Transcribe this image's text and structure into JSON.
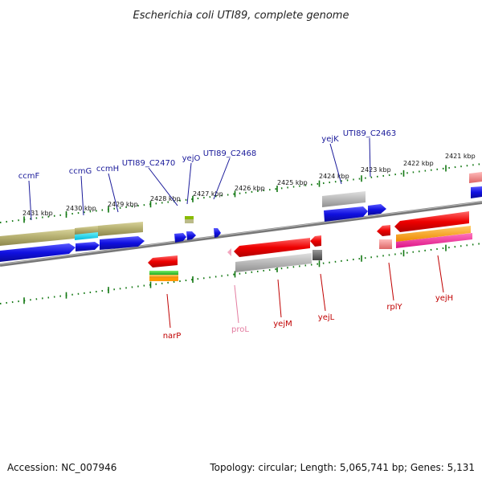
{
  "title": "Escherichia coli UTI89, complete genome",
  "footer": {
    "accession": "Accession: NC_007946",
    "summary": "Topology: circular; Length: 5,065,741 bp; Genes: 5,131"
  },
  "colors": {
    "forward_cds": "#1010e0",
    "reverse_cds": "#e00000",
    "tick": "#117711",
    "backbone": "#888888",
    "label_top": "#1a1a9a",
    "label_bottom": "#c00000",
    "pseudo_label": "#e37ca0"
  },
  "kbp_labels": [
    {
      "text": "2431 kbp"
    },
    {
      "text": "2430 kbp"
    },
    {
      "text": "2429 kbp"
    },
    {
      "text": "2428 kbp"
    },
    {
      "text": "2427 kbp"
    },
    {
      "text": "2426 kbp"
    },
    {
      "text": "2425 kbp"
    },
    {
      "text": "2424 kbp"
    },
    {
      "text": "2423 kbp"
    },
    {
      "text": "2422 kbp"
    },
    {
      "text": "2421 kbp"
    }
  ],
  "genes_top": [
    {
      "name": "ccmF"
    },
    {
      "name": "ccmG"
    },
    {
      "name": "ccmH"
    },
    {
      "name": "UTI89_C2470"
    },
    {
      "name": "yejO"
    },
    {
      "name": "UTI89_C2468"
    },
    {
      "name": "yejK"
    },
    {
      "name": "UTI89_C2463"
    }
  ],
  "genes_bottom": [
    {
      "name": "narP"
    },
    {
      "name": "proL"
    },
    {
      "name": "yejM"
    },
    {
      "name": "yejL"
    },
    {
      "name": "rplY"
    },
    {
      "name": "yejH"
    }
  ]
}
